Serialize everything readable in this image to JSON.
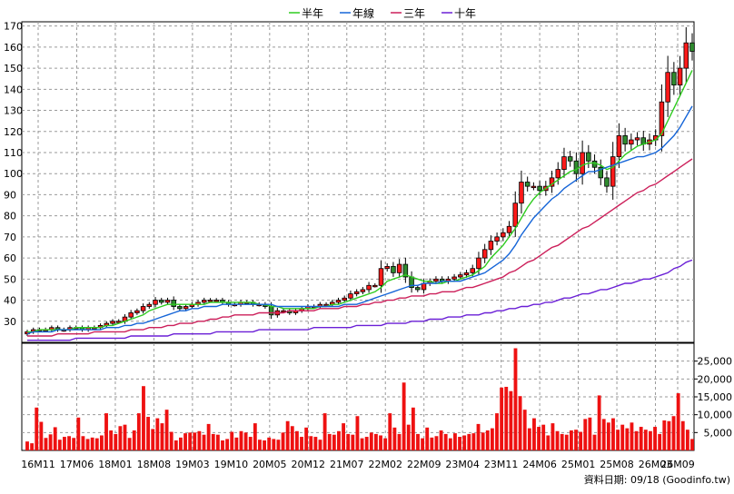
{
  "legend": [
    {
      "label": "半年",
      "color": "#2ecc1f"
    },
    {
      "label": "年線",
      "color": "#1565d8"
    },
    {
      "label": "三年",
      "color": "#cc1f5a"
    },
    {
      "label": "十年",
      "color": "#6a1fd6"
    }
  ],
  "footer": {
    "source": "資料日期: 09/18  (Goodinfo.tw)"
  },
  "colors": {
    "up": "#ff1a1a",
    "down": "#2e8b2e",
    "volume": "#ee1111",
    "grid": "#9a9a9a",
    "background": "#ffffff"
  },
  "chart_data": [
    {
      "type": "candlestick",
      "title": "",
      "ylim": [
        20,
        172
      ],
      "yticks": [
        30,
        40,
        50,
        60,
        70,
        80,
        90,
        100,
        110,
        120,
        130,
        140,
        150,
        160,
        170
      ],
      "xticks": [
        "16M11",
        "17M06",
        "18M01",
        "18M08",
        "19M03",
        "19M10",
        "20M05",
        "20M12",
        "21M07",
        "22M02",
        "22M09",
        "23M04",
        "23M11",
        "24M06",
        "25M01",
        "25M08",
        "26M03",
        "26M09"
      ],
      "grid": true,
      "close": [
        25,
        26,
        26,
        26,
        27,
        26,
        26,
        27,
        27,
        26,
        27,
        27,
        28,
        29,
        30,
        30,
        32,
        34,
        35,
        37,
        38,
        40,
        39,
        40,
        37,
        36,
        37,
        38,
        39,
        40,
        40,
        40,
        39,
        38,
        38,
        39,
        39,
        38,
        38,
        37,
        33,
        35,
        35,
        34,
        35,
        36,
        37,
        37,
        38,
        38,
        39,
        40,
        41,
        43,
        44,
        45,
        47,
        47,
        55,
        56,
        53,
        57,
        51,
        46,
        45,
        48,
        49,
        50,
        49,
        50,
        51,
        52,
        53,
        55,
        60,
        64,
        68,
        70,
        72,
        75,
        86,
        96,
        94,
        94,
        92,
        94,
        98,
        102,
        108,
        106,
        100,
        110,
        106,
        103,
        98,
        94,
        108,
        118,
        114,
        116,
        117,
        114,
        116,
        118,
        134,
        148,
        142,
        150,
        162,
        158
      ],
      "ma_half_year": [
        25,
        25,
        26,
        26,
        26,
        26,
        26,
        26,
        27,
        27,
        27,
        27,
        27,
        28,
        28,
        29,
        30,
        31,
        32,
        33,
        35,
        36,
        37,
        38,
        38,
        38,
        38,
        38,
        38,
        38,
        39,
        39,
        39,
        39,
        39,
        39,
        39,
        39,
        38,
        38,
        37,
        37,
        36,
        36,
        36,
        36,
        36,
        36,
        37,
        37,
        38,
        38,
        39,
        40,
        41,
        42,
        43,
        44,
        46,
        49,
        50,
        51,
        52,
        51,
        50,
        49,
        49,
        48,
        48,
        49,
        49,
        50,
        51,
        52,
        54,
        56,
        60,
        63,
        66,
        70,
        74,
        79,
        84,
        88,
        91,
        93,
        95,
        97,
        99,
        101,
        102,
        104,
        105,
        105,
        104,
        102,
        103,
        106,
        109,
        111,
        113,
        114,
        115,
        116,
        119,
        125,
        131,
        137,
        143,
        149
      ],
      "ma_year": [
        24,
        25,
        25,
        25,
        25,
        26,
        26,
        26,
        26,
        26,
        26,
        26,
        26,
        27,
        27,
        27,
        28,
        28,
        29,
        29,
        30,
        31,
        32,
        33,
        34,
        35,
        35,
        36,
        36,
        37,
        37,
        37,
        38,
        38,
        38,
        38,
        38,
        38,
        38,
        38,
        38,
        37,
        37,
        37,
        37,
        37,
        37,
        37,
        37,
        37,
        37,
        37,
        38,
        38,
        38,
        39,
        40,
        41,
        42,
        43,
        44,
        45,
        46,
        47,
        47,
        48,
        48,
        48,
        49,
        49,
        49,
        49,
        50,
        51,
        52,
        53,
        55,
        57,
        59,
        62,
        66,
        71,
        75,
        79,
        82,
        85,
        88,
        90,
        93,
        95,
        97,
        99,
        101,
        101,
        102,
        103,
        104,
        105,
        106,
        107,
        108,
        108,
        109,
        110,
        112,
        115,
        118,
        122,
        127,
        132
      ],
      "ma_three_year": [
        23,
        23,
        23,
        23,
        23,
        24,
        24,
        24,
        24,
        24,
        24,
        25,
        25,
        25,
        25,
        25,
        25,
        26,
        26,
        26,
        27,
        27,
        27,
        28,
        28,
        29,
        29,
        29,
        30,
        30,
        31,
        31,
        32,
        32,
        33,
        33,
        33,
        33,
        34,
        34,
        34,
        34,
        34,
        35,
        35,
        35,
        35,
        35,
        36,
        36,
        36,
        36,
        37,
        37,
        37,
        38,
        38,
        39,
        39,
        40,
        40,
        41,
        41,
        42,
        42,
        42,
        43,
        43,
        44,
        44,
        44,
        45,
        46,
        46,
        47,
        48,
        49,
        50,
        51,
        53,
        54,
        56,
        58,
        59,
        61,
        63,
        65,
        66,
        68,
        70,
        72,
        74,
        75,
        77,
        79,
        81,
        83,
        85,
        87,
        89,
        91,
        92,
        94,
        95,
        97,
        99,
        101,
        103,
        105,
        107
      ],
      "ma_ten_year": [
        21,
        21,
        21,
        21,
        21,
        21,
        21,
        21,
        22,
        22,
        22,
        22,
        22,
        22,
        22,
        22,
        22,
        23,
        23,
        23,
        23,
        23,
        23,
        23,
        24,
        24,
        24,
        24,
        24,
        24,
        24,
        25,
        25,
        25,
        25,
        25,
        25,
        25,
        26,
        26,
        26,
        26,
        26,
        26,
        26,
        26,
        26,
        27,
        27,
        27,
        27,
        27,
        27,
        27,
        28,
        28,
        28,
        28,
        28,
        29,
        29,
        29,
        29,
        30,
        30,
        30,
        31,
        31,
        31,
        32,
        32,
        32,
        33,
        33,
        33,
        34,
        34,
        35,
        35,
        36,
        36,
        37,
        37,
        38,
        38,
        39,
        39,
        40,
        41,
        41,
        42,
        43,
        43,
        44,
        45,
        45,
        46,
        47,
        48,
        48,
        49,
        50,
        50,
        51,
        52,
        53,
        55,
        56,
        58,
        59
      ]
    },
    {
      "type": "bar",
      "title": "",
      "ylabel": "",
      "ylim": [
        0,
        30000
      ],
      "yticks": [
        5000,
        10000,
        15000,
        20000,
        25000
      ],
      "ytick_labels": [
        "5,000",
        "10,000",
        "15,000",
        "20,000",
        "25,000"
      ],
      "grid": true,
      "values": [
        2500,
        2000,
        12000,
        8000,
        3500,
        4500,
        6500,
        3000,
        3800,
        4000,
        3500,
        9200,
        4000,
        3200,
        3600,
        3400,
        4200,
        10400,
        5600,
        4600,
        6800,
        7200,
        3500,
        5600,
        10400,
        18000,
        9400,
        6000,
        9000,
        7600,
        11400,
        5200,
        2800,
        3600,
        4800,
        5000,
        5000,
        5400,
        4400,
        7400,
        4600,
        4400,
        2800,
        3200,
        5200,
        3600,
        5400,
        5000,
        3800,
        7600,
        3000,
        2800,
        3600,
        3200,
        3000,
        5000,
        8200,
        6800,
        5400,
        3800,
        6400,
        4000,
        3800,
        3000,
        10400,
        4600,
        4400,
        5400,
        7600,
        4600,
        4400,
        9600,
        3400,
        3800,
        5000,
        4600,
        4200,
        3400,
        10400,
        6400,
        4600,
        19000,
        7200,
        12000,
        4600,
        3400,
        6400,
        3600,
        4000,
        5600,
        4600,
        3400,
        4800,
        3800,
        4200,
        4600,
        4800,
        7400,
        5000,
        5600,
        6200,
        10400,
        17600,
        17800,
        16600,
        28600,
        15200,
        11400,
        6200,
        9000,
        6600,
        7200,
        4200,
        7600,
        5400,
        4600,
        4400,
        5600,
        5800,
        5200,
        8800,
        9200,
        4400,
        15400,
        8800,
        7800,
        9000,
        5800,
        7200,
        6200,
        7800,
        5400,
        6600,
        5800,
        5400,
        6600,
        4600,
        8400,
        8200,
        9600,
        16000,
        8200,
        5800,
        3200
      ]
    }
  ]
}
